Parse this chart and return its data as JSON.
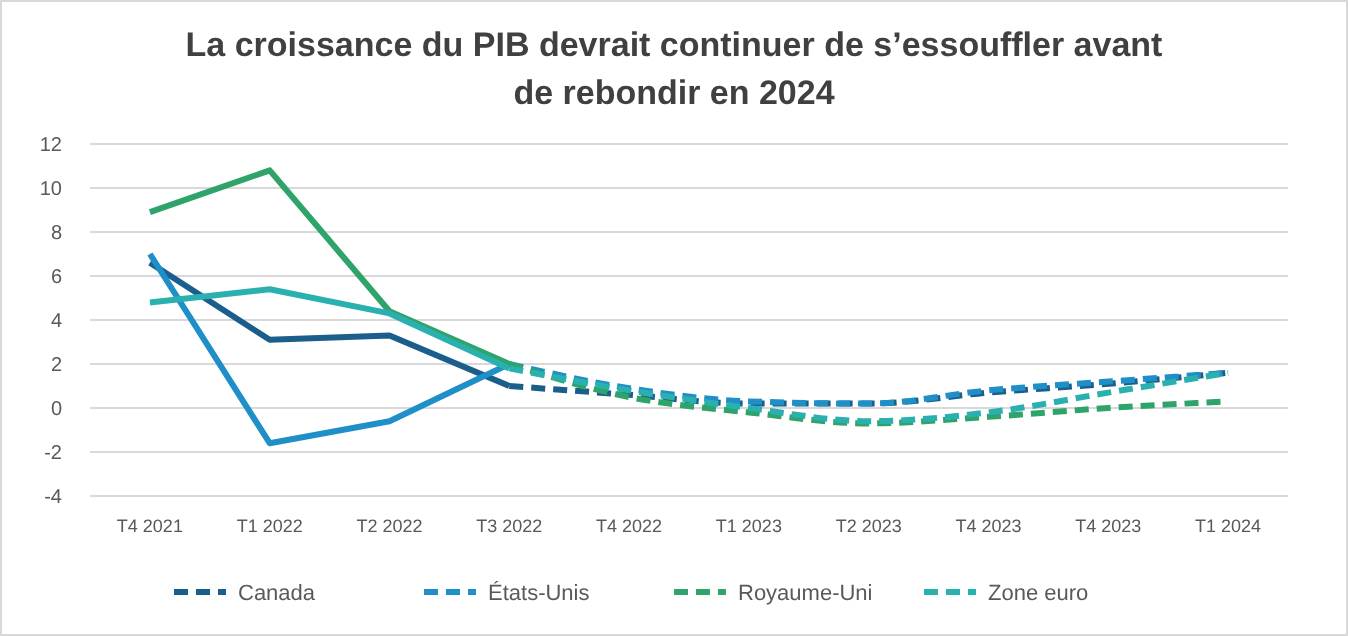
{
  "chart_data": {
    "type": "line",
    "title": "La croissance du PIB devrait continuer de s’essouffler avant de rebondir en 2024",
    "categories": [
      "T4 2021",
      "T1 2022",
      "T2 2022",
      "T3 2022",
      "T4 2022",
      "T1 2023",
      "T2 2023",
      "T4 2023",
      "T4 2023",
      "T1 2024"
    ],
    "series": [
      {
        "color": "#1b5e8c",
        "line_style": "solid",
        "values": [
          6.6,
          3.1,
          3.3,
          1.0,
          null,
          null,
          null,
          null,
          null,
          null
        ]
      },
      {
        "color": "#1f8fc8",
        "line_style": "solid",
        "values": [
          7.0,
          -1.6,
          -0.6,
          2.0,
          null,
          null,
          null,
          null,
          null,
          null
        ]
      },
      {
        "color": "#2ea36a",
        "line_style": "solid",
        "values": [
          8.9,
          10.8,
          4.4,
          2.0,
          null,
          null,
          null,
          null,
          null,
          null
        ]
      },
      {
        "color": "#2bb0b0",
        "line_style": "solid",
        "values": [
          4.8,
          5.4,
          4.3,
          1.8,
          null,
          null,
          null,
          null,
          null,
          null
        ]
      },
      {
        "name": "Canada",
        "color": "#1b5e8c",
        "line_style": "dashed",
        "values": [
          null,
          null,
          null,
          1.0,
          0.6,
          0.2,
          0.2,
          0.7,
          1.1,
          1.6
        ]
      },
      {
        "name": "États-Unis",
        "color": "#1f8fc8",
        "line_style": "dashed",
        "values": [
          null,
          null,
          null,
          2.0,
          0.9,
          0.3,
          0.2,
          0.8,
          1.2,
          1.6
        ]
      },
      {
        "name": "Royaume-Uni",
        "color": "#2ea36a",
        "line_style": "dashed",
        "values": [
          null,
          null,
          null,
          2.0,
          0.5,
          -0.2,
          -0.7,
          -0.4,
          0.0,
          0.3
        ]
      },
      {
        "name": "Zone euro",
        "color": "#2bb0b0",
        "line_style": "dashed",
        "values": [
          null,
          null,
          null,
          1.8,
          0.8,
          0.0,
          -0.6,
          -0.2,
          0.7,
          1.6
        ]
      }
    ],
    "ylim": [
      -4,
      12
    ],
    "yticks": [
      -4,
      -2,
      0,
      2,
      4,
      6,
      8,
      10,
      12
    ],
    "grid": "y",
    "legend": "bottom",
    "marker": "none"
  }
}
